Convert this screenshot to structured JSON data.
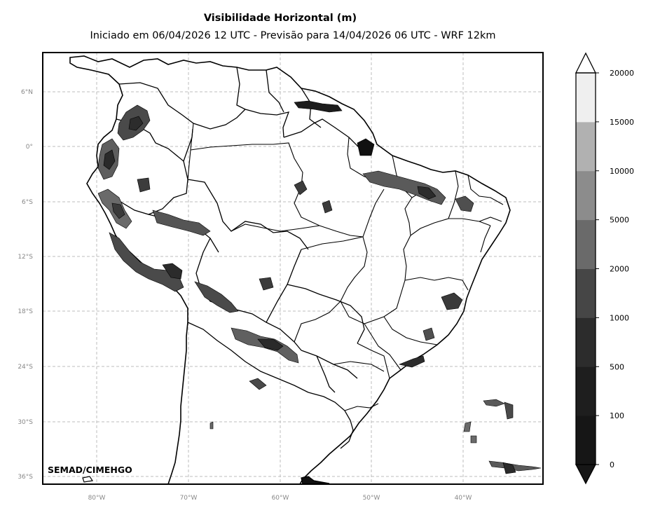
{
  "title": "Visibilidade Horizontal (m)",
  "subtitle": "Iniciado em 06/04/2026 12 UTC - Previsão para 14/04/2026 06 UTC - WRF 12km",
  "credit": "SEMAD/CIMEHGO",
  "lat_labels": [
    "6°N",
    "0°",
    "6°S",
    "12°S",
    "18°S",
    "24°S",
    "30°S",
    "36°S"
  ],
  "lon_labels": [
    "80°W",
    "70°W",
    "60°W",
    "50°W",
    "40°W"
  ],
  "colorbar": {
    "levels": [
      "0",
      "100",
      "500",
      "1000",
      "2000",
      "5000",
      "10000",
      "15000",
      "20000"
    ],
    "colors": [
      "#161616",
      "#1e1e1e",
      "#2c2c2c",
      "#464646",
      "#6a6a6a",
      "#8c8c8c",
      "#b1b1b1",
      "#efefef"
    ]
  },
  "map": {
    "extent_lon": [
      -86,
      -31.5
    ],
    "extent_lat": [
      -37,
      10
    ],
    "gridlines": true,
    "projection": "PlateCarree"
  }
}
